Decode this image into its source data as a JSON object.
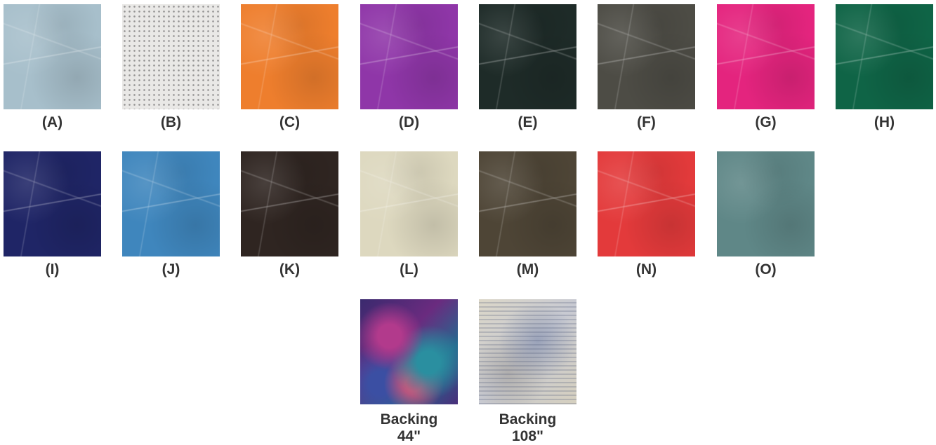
{
  "swatches": [
    {
      "label": "(A)",
      "color": "#a7bfcb"
    },
    {
      "label": "(B)",
      "color": "#e9e8e6"
    },
    {
      "label": "(C)",
      "color": "#ee7e2d"
    },
    {
      "label": "(D)",
      "color": "#8f36a8"
    },
    {
      "label": "(E)",
      "color": "#1e2b28"
    },
    {
      "label": "(F)",
      "color": "#4d4c45"
    },
    {
      "label": "(G)",
      "color": "#e4247e"
    },
    {
      "label": "(H)",
      "color": "#0f6446"
    },
    {
      "label": "(I)",
      "color": "#1f2566"
    },
    {
      "label": "(J)",
      "color": "#3f86bd"
    },
    {
      "label": "(K)",
      "color": "#2f2521"
    },
    {
      "label": "(L)",
      "color": "#ddd8bf"
    },
    {
      "label": "(M)",
      "color": "#4e4536"
    },
    {
      "label": "(N)",
      "color": "#e33a3b"
    },
    {
      "label": "(O)",
      "color": "#5f8787"
    }
  ],
  "backing": [
    {
      "line1": "Backing",
      "line2": "44\""
    },
    {
      "line1": "Backing",
      "line2": "108\""
    }
  ]
}
